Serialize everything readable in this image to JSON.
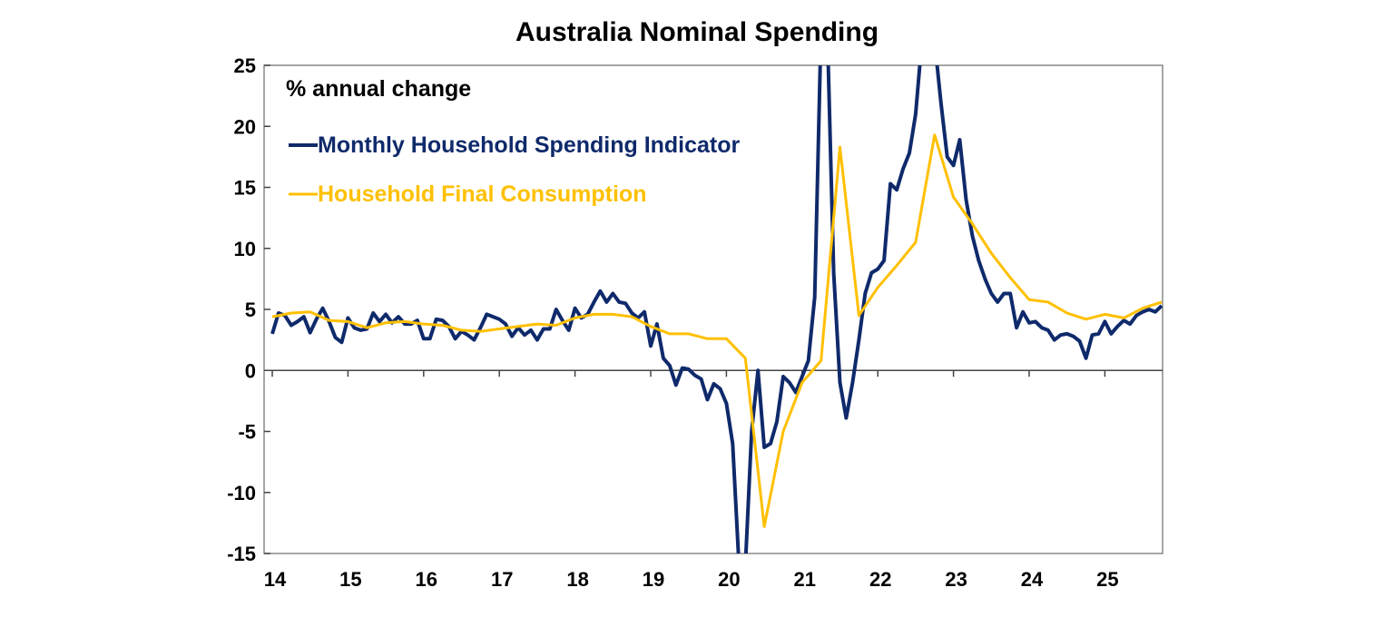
{
  "chart_data": {
    "type": "line",
    "title": "Australia Nominal Spending",
    "ylabel": "% annual change",
    "xlabel": "",
    "ylim": [
      -15,
      25
    ],
    "yticks": [
      -15,
      -10,
      -5,
      0,
      5,
      10,
      15,
      20,
      25
    ],
    "xlim": [
      "2014-01",
      "2025-10"
    ],
    "xticks": [
      "14",
      "15",
      "16",
      "17",
      "18",
      "19",
      "20",
      "21",
      "22",
      "23",
      "24",
      "25"
    ],
    "grid": false,
    "legend_placement": "top-left",
    "series": [
      {
        "name": "Monthly Household Spending Indicator",
        "color": "#0f2a6b",
        "frequency": "monthly",
        "start": "2014-01",
        "values": [
          3.0,
          4.7,
          4.5,
          3.7,
          4.0,
          4.4,
          3.1,
          4.2,
          5.1,
          4.0,
          2.7,
          2.3,
          4.3,
          3.5,
          3.3,
          3.4,
          4.7,
          4.0,
          4.6,
          3.9,
          4.4,
          3.8,
          3.8,
          4.1,
          2.6,
          2.6,
          4.2,
          4.1,
          3.6,
          2.6,
          3.2,
          2.9,
          2.5,
          3.5,
          4.6,
          4.4,
          4.2,
          3.8,
          2.8,
          3.5,
          2.9,
          3.3,
          2.5,
          3.4,
          3.4,
          5.0,
          4.1,
          3.3,
          5.1,
          4.3,
          4.6,
          5.6,
          6.5,
          5.6,
          6.3,
          5.6,
          5.5,
          4.7,
          4.3,
          4.8,
          2.0,
          3.8,
          1.0,
          0.4,
          -1.2,
          0.2,
          0.1,
          -0.4,
          -0.7,
          -2.4,
          -1.1,
          -1.5,
          -2.7,
          -6.0,
          -16,
          -16,
          -5.0,
          0.0,
          -6.3,
          -6.0,
          -4.2,
          -0.5,
          -1.0,
          -1.8,
          -0.5,
          0.8,
          6.0,
          28,
          28,
          8.0,
          -1.0,
          -3.9,
          -1.0,
          2.5,
          6.3,
          8.0,
          8.3,
          9.0,
          15.3,
          14.8,
          16.5,
          17.8,
          21.0,
          27,
          27,
          27,
          22.0,
          17.5,
          16.8,
          18.9,
          14.0,
          11.0,
          9.0,
          7.5,
          6.3,
          5.6,
          6.3,
          6.3,
          3.5,
          4.8,
          3.9,
          4.0,
          3.5,
          3.3,
          2.5,
          2.9,
          3.0,
          2.8,
          2.4,
          1.0,
          2.9,
          3.0,
          4.0,
          3.0,
          3.6,
          4.1,
          3.8,
          4.5,
          4.8,
          5.0,
          4.8,
          5.3
        ]
      },
      {
        "name": "Household Final Consumption",
        "color": "#ffc000",
        "frequency": "quarterly",
        "start": "2014-01",
        "values": [
          4.4,
          4.7,
          4.8,
          4.1,
          4.0,
          3.5,
          3.9,
          4.0,
          3.8,
          3.7,
          3.3,
          3.2,
          3.4,
          3.6,
          3.8,
          3.7,
          4.3,
          4.6,
          4.6,
          4.4,
          3.6,
          3.0,
          3.0,
          2.6,
          2.6,
          1.0,
          -12.8,
          -5.0,
          -1.0,
          0.8,
          18.3,
          4.5,
          6.8,
          8.6,
          10.5,
          19.3,
          14.2,
          12.0,
          9.6,
          7.6,
          5.8,
          5.6,
          4.7,
          4.2,
          4.6,
          4.3,
          5.1,
          5.6
        ]
      }
    ]
  }
}
